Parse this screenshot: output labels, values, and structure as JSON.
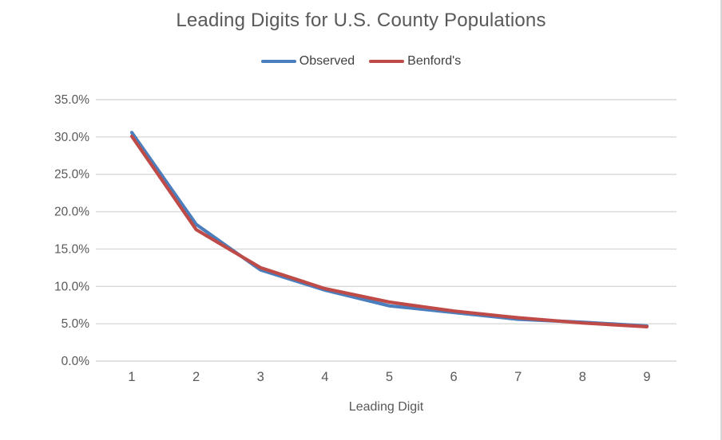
{
  "chart_data": {
    "type": "line",
    "title": "Leading Digits for U.S. County Populations",
    "xlabel": "Leading Digit",
    "ylabel": "",
    "categories": [
      "1",
      "2",
      "3",
      "4",
      "5",
      "6",
      "7",
      "8",
      "9"
    ],
    "series": [
      {
        "name": "Observed",
        "color": "#4A7EBC",
        "values": [
          30.6,
          18.3,
          12.2,
          9.5,
          7.4,
          6.5,
          5.6,
          5.2,
          4.7
        ]
      },
      {
        "name": "Benford's",
        "color": "#BE4B48",
        "values": [
          30.1,
          17.6,
          12.5,
          9.7,
          7.9,
          6.7,
          5.8,
          5.1,
          4.6
        ]
      }
    ],
    "ylim": [
      0,
      35
    ],
    "ytick_step": 5,
    "ytick_labels": [
      "0.0%",
      "5.0%",
      "10.0%",
      "15.0%",
      "20.0%",
      "25.0%",
      "30.0%",
      "35.0%"
    ],
    "grid": true,
    "legend_position": "top-center",
    "colors": {
      "gridline": "#d9d9d9",
      "axis_text": "#595959",
      "title_text": "#595959",
      "legend_text": "#404040",
      "background": "#ffffff"
    }
  }
}
